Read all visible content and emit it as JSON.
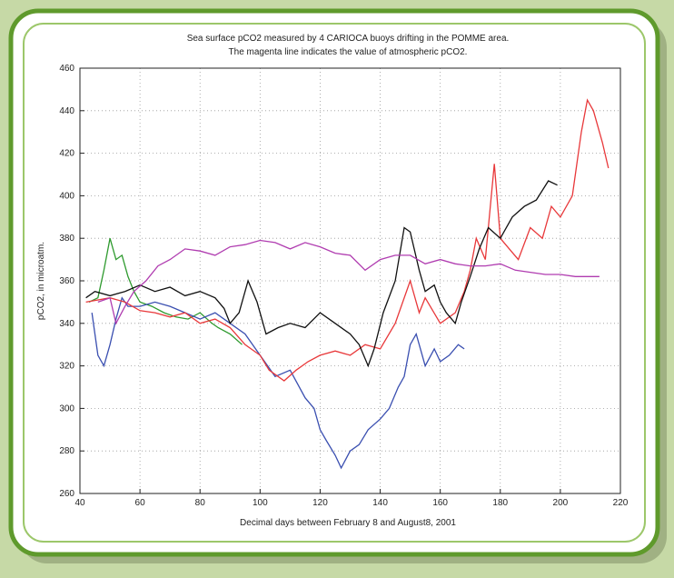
{
  "chart_data": {
    "type": "line",
    "title": [
      "Sea surface pCO2 measured by 4 CARIOCA buoys drifting in the POMME area.",
      "The magenta line indicates  the value of  atmospheric pCO2."
    ],
    "xlabel": "Decimal days between February 8 and August8, 2001",
    "ylabel": "pCO2, in microatm.",
    "xlim": [
      40,
      220
    ],
    "ylim": [
      260,
      460
    ],
    "xticks": [
      40,
      60,
      80,
      100,
      120,
      140,
      160,
      180,
      200,
      220
    ],
    "yticks": [
      260,
      280,
      300,
      320,
      340,
      360,
      380,
      400,
      420,
      440,
      460
    ],
    "grid": true,
    "series": [
      {
        "color": "#2e9a2e",
        "x": [
          43,
          46,
          48,
          50,
          52,
          54,
          56,
          58,
          60,
          64,
          68,
          72,
          76,
          80,
          84,
          86,
          90,
          94
        ],
        "values": [
          350,
          352,
          365,
          380,
          370,
          372,
          362,
          355,
          350,
          348,
          345,
          343,
          342,
          345,
          340,
          338,
          335,
          330
        ]
      },
      {
        "color": "#3a4fb0",
        "x": [
          44,
          46,
          48,
          50,
          52,
          54,
          56,
          60,
          65,
          70,
          75,
          80,
          85,
          90,
          95,
          100,
          105,
          110,
          115,
          118,
          120,
          122,
          125,
          127,
          130,
          133,
          136,
          140,
          143,
          146,
          148,
          150,
          152,
          155,
          158,
          160,
          163,
          166,
          168
        ],
        "values": [
          345,
          325,
          320,
          330,
          342,
          352,
          348,
          348,
          350,
          348,
          345,
          342,
          345,
          340,
          335,
          325,
          315,
          318,
          305,
          300,
          290,
          285,
          278,
          272,
          280,
          283,
          290,
          295,
          300,
          310,
          315,
          330,
          335,
          320,
          328,
          322,
          325,
          330,
          328
        ]
      },
      {
        "color": "#e8383a",
        "x": [
          42,
          50,
          55,
          60,
          65,
          70,
          75,
          80,
          85,
          90,
          95,
          100,
          103,
          108,
          112,
          116,
          120,
          125,
          130,
          135,
          140,
          145,
          150,
          153,
          155,
          160,
          165,
          168,
          170,
          172,
          175,
          178,
          180,
          183,
          186,
          190,
          194,
          197,
          200,
          204,
          207,
          209,
          211,
          214,
          216
        ],
        "values": [
          350,
          352,
          350,
          346,
          345,
          343,
          345,
          340,
          342,
          338,
          330,
          325,
          318,
          313,
          318,
          322,
          325,
          327,
          325,
          330,
          328,
          340,
          360,
          345,
          352,
          340,
          345,
          355,
          365,
          380,
          370,
          415,
          380,
          375,
          370,
          385,
          380,
          395,
          390,
          400,
          430,
          445,
          440,
          425,
          413
        ]
      },
      {
        "color": "#111111",
        "x": [
          42,
          45,
          50,
          55,
          60,
          65,
          70,
          75,
          80,
          85,
          88,
          90,
          93,
          96,
          99,
          102,
          106,
          110,
          115,
          120,
          125,
          130,
          133,
          136,
          138,
          141,
          145,
          148,
          150,
          153,
          155,
          158,
          160,
          162,
          165,
          167,
          170,
          173,
          176,
          180,
          184,
          188,
          192,
          196,
          199
        ],
        "values": [
          352,
          355,
          353,
          355,
          358,
          355,
          357,
          353,
          355,
          352,
          347,
          340,
          345,
          360,
          350,
          335,
          338,
          340,
          338,
          345,
          340,
          335,
          330,
          320,
          328,
          345,
          360,
          385,
          383,
          365,
          355,
          358,
          350,
          345,
          340,
          350,
          362,
          375,
          385,
          380,
          390,
          395,
          398,
          407,
          405
        ]
      },
      {
        "color": "#b03cb0",
        "x": [
          46,
          50,
          52,
          55,
          58,
          62,
          66,
          70,
          75,
          80,
          85,
          90,
          95,
          100,
          105,
          110,
          115,
          120,
          125,
          130,
          135,
          140,
          145,
          150,
          155,
          160,
          165,
          170,
          175,
          180,
          185,
          190,
          195,
          200,
          205,
          210,
          213
        ],
        "values": [
          350,
          352,
          340,
          348,
          355,
          360,
          367,
          370,
          375,
          374,
          372,
          376,
          377,
          379,
          378,
          375,
          378,
          376,
          373,
          372,
          365,
          370,
          372,
          372,
          368,
          370,
          368,
          367,
          367,
          368,
          365,
          364,
          363,
          363,
          362,
          362,
          362
        ]
      }
    ]
  }
}
